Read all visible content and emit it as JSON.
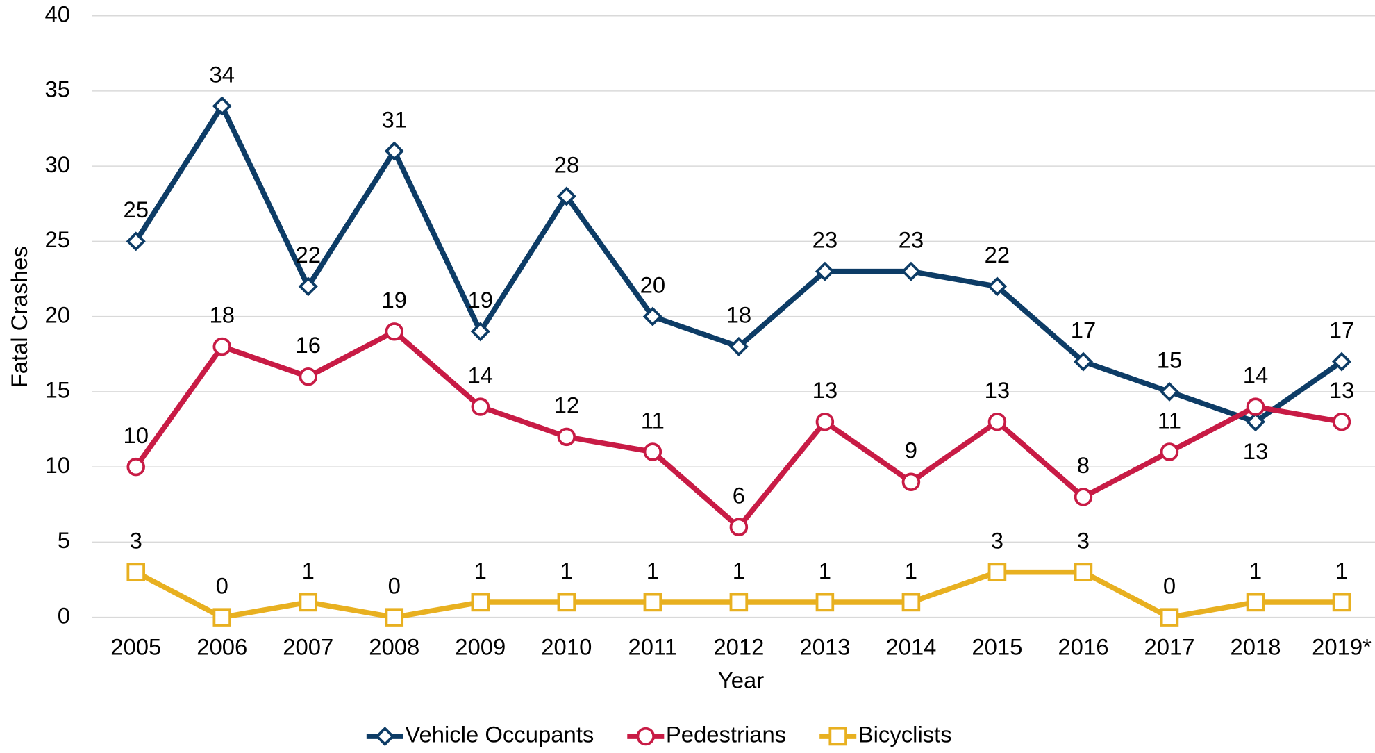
{
  "chart_data": {
    "type": "line",
    "categories": [
      "2005",
      "2006",
      "2007",
      "2008",
      "2009",
      "2010",
      "2011",
      "2012",
      "2013",
      "2014",
      "2015",
      "2016",
      "2017",
      "2018",
      "2019*"
    ],
    "series": [
      {
        "name": "Vehicle Occupants",
        "color": "#0d3c66",
        "marker": "diamond",
        "values": [
          25,
          34,
          22,
          31,
          19,
          28,
          20,
          18,
          23,
          23,
          22,
          17,
          15,
          13,
          17
        ]
      },
      {
        "name": "Pedestrians",
        "color": "#c81b45",
        "marker": "circle",
        "values": [
          10,
          18,
          16,
          19,
          14,
          12,
          11,
          6,
          13,
          9,
          13,
          8,
          11,
          14,
          13
        ]
      },
      {
        "name": "Bicyclists",
        "color": "#e8b020",
        "marker": "square",
        "values": [
          3,
          0,
          1,
          0,
          1,
          1,
          1,
          1,
          1,
          1,
          3,
          3,
          0,
          1,
          1
        ]
      }
    ],
    "highlight_label_color": "#c00000",
    "xlabel": "Year",
    "ylabel": "Fatal Crashes",
    "ylim": [
      0,
      40
    ],
    "yticks": [
      0,
      5,
      10,
      15,
      20,
      25,
      30,
      35,
      40
    ],
    "grid": true,
    "legend": "bottom"
  }
}
